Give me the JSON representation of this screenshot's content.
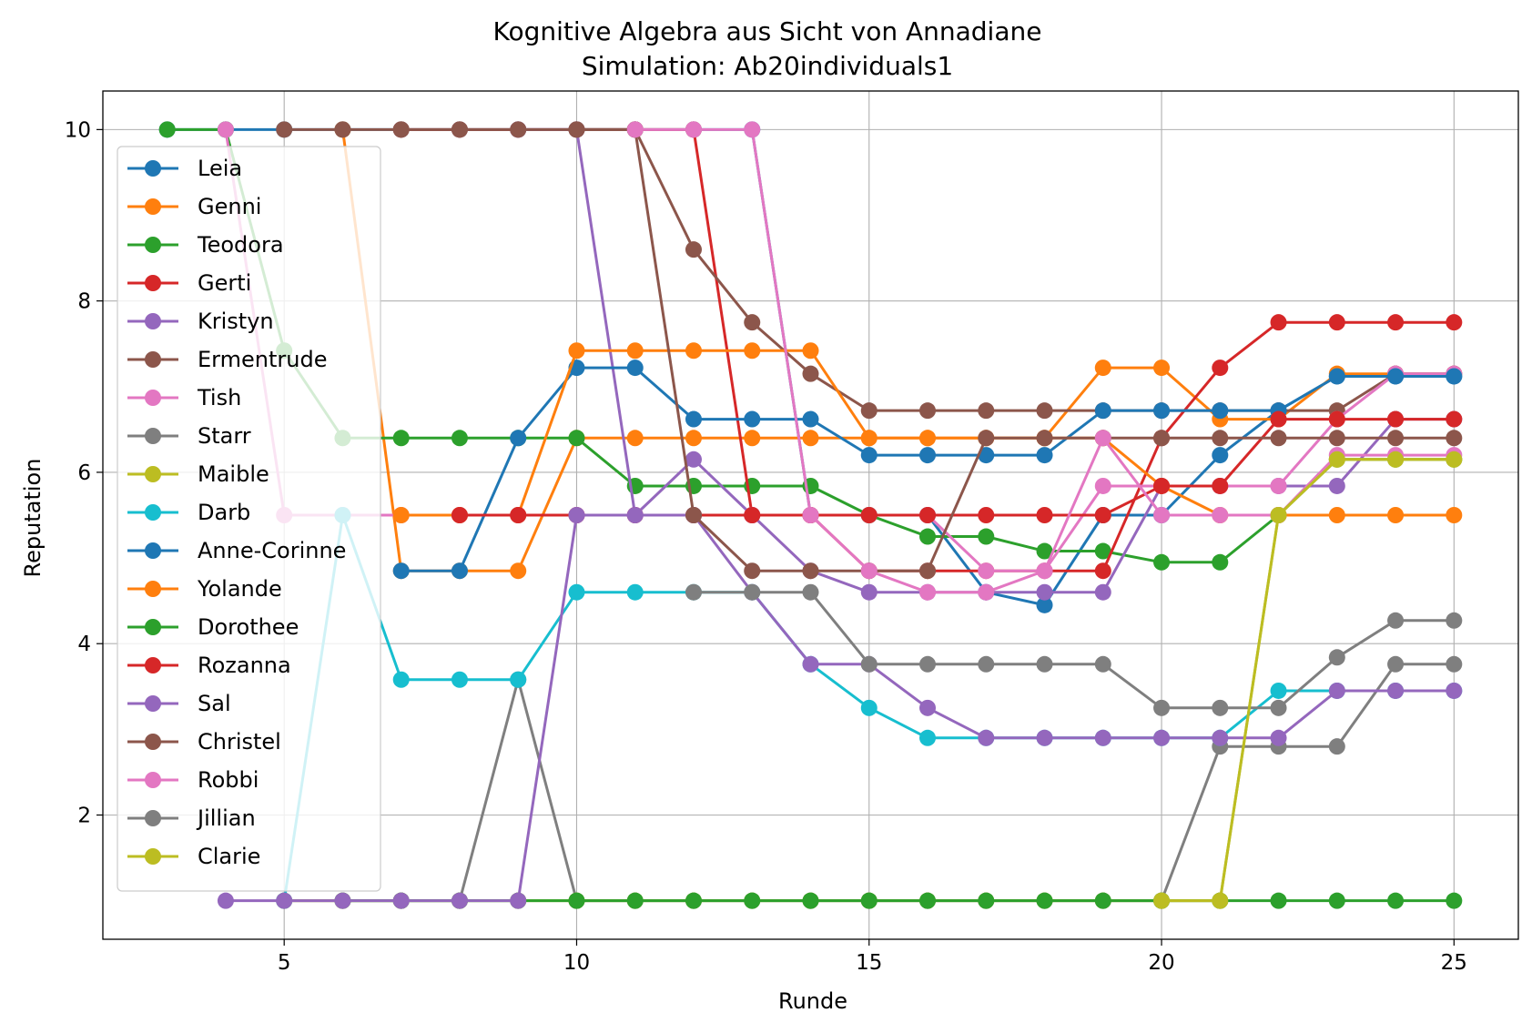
{
  "chart_data": {
    "type": "line",
    "title": "Kognitive Algebra aus Sicht von Annadiane",
    "subtitle": "Simulation: Ab20individuals1",
    "xlabel": "Runde",
    "ylabel": "Reputation",
    "xlim": [
      1.9,
      26.1
    ],
    "ylim": [
      0.55,
      10.45
    ],
    "xticks": [
      5,
      10,
      15,
      20,
      25
    ],
    "yticks": [
      2,
      4,
      6,
      8,
      10
    ],
    "grid": true,
    "legend_position": "upper left",
    "series": [
      {
        "name": "Leia",
        "color": "#1f77b4",
        "x": [
          3,
          4,
          5,
          6,
          7,
          8,
          9,
          10,
          11,
          12,
          13,
          14,
          15,
          16,
          17,
          18,
          19,
          20,
          21,
          22,
          23,
          24,
          25
        ],
        "y": [
          10,
          10,
          10,
          10,
          10,
          10,
          10,
          10,
          10,
          10,
          10,
          5.5,
          5.5,
          5.5,
          4.6,
          4.45,
          5.5,
          5.5,
          6.2,
          6.72,
          7.12,
          7.12,
          7.12
        ]
      },
      {
        "name": "Genni",
        "color": "#ff7f0e",
        "x": [
          6,
          7,
          8,
          9,
          10,
          11,
          12,
          13,
          14,
          15,
          16,
          17,
          18,
          19,
          20,
          21,
          22,
          23,
          24,
          25
        ],
        "y": [
          10,
          4.85,
          4.85,
          4.85,
          6.4,
          6.4,
          6.4,
          6.4,
          6.4,
          6.4,
          6.4,
          6.4,
          6.4,
          7.22,
          7.22,
          6.62,
          6.62,
          7.15,
          7.15,
          7.15
        ]
      },
      {
        "name": "Teodora",
        "color": "#2ca02c",
        "x": [
          3,
          4,
          5,
          6,
          7,
          8,
          9,
          10,
          11,
          12,
          13,
          14,
          15,
          16,
          17,
          18,
          19,
          20,
          21,
          22,
          23,
          24,
          25
        ],
        "y": [
          10,
          10,
          7.42,
          6.4,
          6.4,
          6.4,
          6.4,
          6.4,
          5.84,
          5.84,
          5.84,
          5.84,
          5.5,
          5.25,
          5.25,
          5.08,
          5.08,
          4.95,
          4.95,
          5.5,
          6.15,
          6.15,
          6.15
        ]
      },
      {
        "name": "Gerti",
        "color": "#d62728",
        "x": [
          7,
          8,
          9,
          10,
          11,
          12,
          13,
          14,
          15,
          16,
          17,
          18,
          19,
          20,
          21,
          22,
          23,
          24,
          25
        ],
        "y": [
          10,
          10,
          10,
          10,
          10,
          10,
          5.5,
          5.5,
          4.85,
          4.85,
          4.85,
          4.85,
          4.85,
          6.4,
          7.22,
          7.75,
          7.75,
          7.75,
          7.75
        ]
      },
      {
        "name": "Kristyn",
        "color": "#9467bd",
        "x": [
          9,
          10,
          11,
          12,
          13,
          14,
          15,
          16,
          17,
          18,
          19,
          20,
          21,
          22,
          23,
          24,
          25
        ],
        "y": [
          10,
          10,
          5.5,
          6.15,
          5.5,
          4.85,
          4.6,
          4.6,
          4.6,
          4.6,
          4.6,
          5.84,
          5.84,
          5.84,
          5.84,
          6.62,
          6.62
        ]
      },
      {
        "name": "Ermentrude",
        "color": "#8c564b",
        "x": [
          5,
          6,
          7,
          8,
          9,
          10,
          11,
          12,
          13,
          14,
          15,
          16,
          17,
          18,
          19,
          20,
          21,
          22,
          23,
          24,
          25
        ],
        "y": [
          10,
          10,
          10,
          10,
          10,
          10,
          10,
          8.6,
          7.75,
          7.15,
          6.72,
          6.72,
          6.72,
          6.72,
          6.72,
          6.72,
          6.72,
          6.72,
          6.72,
          7.15,
          7.15
        ]
      },
      {
        "name": "Tish",
        "color": "#e377c2",
        "x": [
          4,
          5,
          6,
          7,
          8,
          9,
          10,
          11,
          12,
          13,
          14,
          15,
          16,
          17,
          18,
          19,
          20,
          21,
          22,
          23,
          24,
          25
        ],
        "y": [
          10,
          5.5,
          5.5,
          5.5,
          5.5,
          5.5,
          5.5,
          5.5,
          5.5,
          5.5,
          5.5,
          5.5,
          5.5,
          4.85,
          4.85,
          5.84,
          5.84,
          5.84,
          5.84,
          6.62,
          7.15,
          7.15
        ]
      },
      {
        "name": "Starr",
        "color": "#7f7f7f",
        "x": [
          5,
          6,
          7,
          8,
          9,
          10,
          11,
          12,
          13,
          14,
          15,
          16,
          17,
          18,
          19,
          20,
          21,
          22,
          23,
          24,
          25
        ],
        "y": [
          1,
          1,
          1,
          1,
          3.58,
          1,
          1,
          1,
          1,
          1,
          1,
          1,
          1,
          1,
          1,
          1,
          2.8,
          2.8,
          2.8,
          3.76,
          3.76
        ]
      },
      {
        "name": "Maible",
        "color": "#bcbd22",
        "x": [
          5,
          6,
          7,
          8,
          9,
          10,
          11,
          12,
          13,
          14,
          15,
          16,
          17,
          18,
          19,
          20,
          21,
          22,
          23,
          24,
          25
        ],
        "y": [
          1,
          1,
          1,
          1,
          1,
          1,
          1,
          1,
          1,
          1,
          1,
          1,
          1,
          1,
          1,
          1,
          1,
          5.5,
          6.15,
          6.15,
          6.15
        ]
      },
      {
        "name": "Darb",
        "color": "#17becf",
        "x": [
          5,
          6,
          7,
          8,
          9,
          10,
          11,
          12,
          13,
          14,
          15,
          16,
          17,
          18,
          19,
          20,
          21,
          22,
          23,
          24,
          25
        ],
        "y": [
          1,
          5.5,
          3.58,
          3.58,
          3.58,
          4.6,
          4.6,
          4.6,
          4.6,
          3.76,
          3.25,
          2.9,
          2.9,
          2.9,
          2.9,
          2.9,
          2.9,
          3.45,
          3.45,
          3.45,
          3.45
        ]
      },
      {
        "name": "Anne-Corinne",
        "color": "#1f77b4",
        "x": [
          7,
          8,
          9,
          10,
          11,
          12,
          13,
          14,
          15,
          16,
          17,
          18,
          19,
          20,
          21,
          22,
          23,
          24,
          25
        ],
        "y": [
          4.85,
          4.85,
          6.4,
          7.22,
          7.22,
          6.62,
          6.62,
          6.62,
          6.2,
          6.2,
          6.2,
          6.2,
          6.72,
          6.72,
          6.72,
          6.72,
          7.12,
          7.12,
          7.12
        ]
      },
      {
        "name": "Yolande",
        "color": "#ff7f0e",
        "x": [
          7,
          8,
          9,
          10,
          11,
          12,
          13,
          14,
          15,
          16,
          17,
          18,
          19,
          20,
          21,
          22,
          23,
          24,
          25
        ],
        "y": [
          5.5,
          5.5,
          5.5,
          7.42,
          7.42,
          7.42,
          7.42,
          7.42,
          6.4,
          6.4,
          6.4,
          6.4,
          6.4,
          5.84,
          5.5,
          5.5,
          5.5,
          5.5,
          5.5
        ]
      },
      {
        "name": "Dorothee",
        "color": "#2ca02c",
        "x": [
          6,
          7,
          8,
          9,
          10,
          11,
          12,
          13,
          14,
          15,
          16,
          17,
          18,
          19,
          20,
          21,
          22,
          23,
          24,
          25
        ],
        "y": [
          1,
          1,
          1,
          1,
          1,
          1,
          1,
          1,
          1,
          1,
          1,
          1,
          1,
          1,
          1,
          1,
          1,
          1,
          1,
          1
        ]
      },
      {
        "name": "Rozanna",
        "color": "#d62728",
        "x": [
          8,
          9,
          10,
          11,
          12,
          13,
          14,
          15,
          16,
          17,
          18,
          19,
          20,
          21,
          22,
          23,
          24,
          25
        ],
        "y": [
          5.5,
          5.5,
          5.5,
          5.5,
          5.5,
          5.5,
          5.5,
          5.5,
          5.5,
          5.5,
          5.5,
          5.5,
          5.84,
          5.84,
          6.62,
          6.62,
          6.62,
          6.62
        ]
      },
      {
        "name": "Sal",
        "color": "#9467bd",
        "x": [
          4,
          5,
          6,
          7,
          8,
          9,
          10,
          11,
          12,
          13,
          14,
          15,
          16,
          17,
          18,
          19,
          20,
          21,
          22,
          23,
          24,
          25
        ],
        "y": [
          1,
          1,
          1,
          1,
          1,
          1,
          5.5,
          5.5,
          5.5,
          4.6,
          3.76,
          3.76,
          3.25,
          2.9,
          2.9,
          2.9,
          2.9,
          2.9,
          2.9,
          3.45,
          3.45,
          3.45
        ]
      },
      {
        "name": "Christel",
        "color": "#8c564b",
        "x": [
          10,
          11,
          12,
          13,
          14,
          15,
          16,
          17,
          18,
          19,
          20,
          21,
          22,
          23,
          24,
          25
        ],
        "y": [
          10,
          10,
          5.5,
          4.85,
          4.85,
          4.85,
          4.85,
          6.4,
          6.4,
          6.4,
          6.4,
          6.4,
          6.4,
          6.4,
          6.4,
          6.4
        ]
      },
      {
        "name": "Robbi",
        "color": "#e377c2",
        "x": [
          11,
          12,
          13,
          14,
          15,
          16,
          17,
          18,
          19,
          20,
          21,
          22,
          23,
          24,
          25
        ],
        "y": [
          10,
          10,
          10,
          5.5,
          4.85,
          4.6,
          4.6,
          4.85,
          6.4,
          5.5,
          5.5,
          5.5,
          6.2,
          6.2,
          6.2
        ]
      },
      {
        "name": "Jillian",
        "color": "#7f7f7f",
        "x": [
          12,
          13,
          14,
          15,
          16,
          17,
          18,
          19,
          20,
          21,
          22,
          23,
          24,
          25
        ],
        "y": [
          4.6,
          4.6,
          4.6,
          3.76,
          3.76,
          3.76,
          3.76,
          3.76,
          3.25,
          3.25,
          3.25,
          3.84,
          4.27,
          4.27
        ]
      },
      {
        "name": "Clarie",
        "color": "#bcbd22",
        "x": [
          20,
          21,
          22,
          23,
          24,
          25
        ],
        "y": [
          1,
          1,
          5.5,
          6.15,
          6.15,
          6.15
        ]
      }
    ]
  }
}
